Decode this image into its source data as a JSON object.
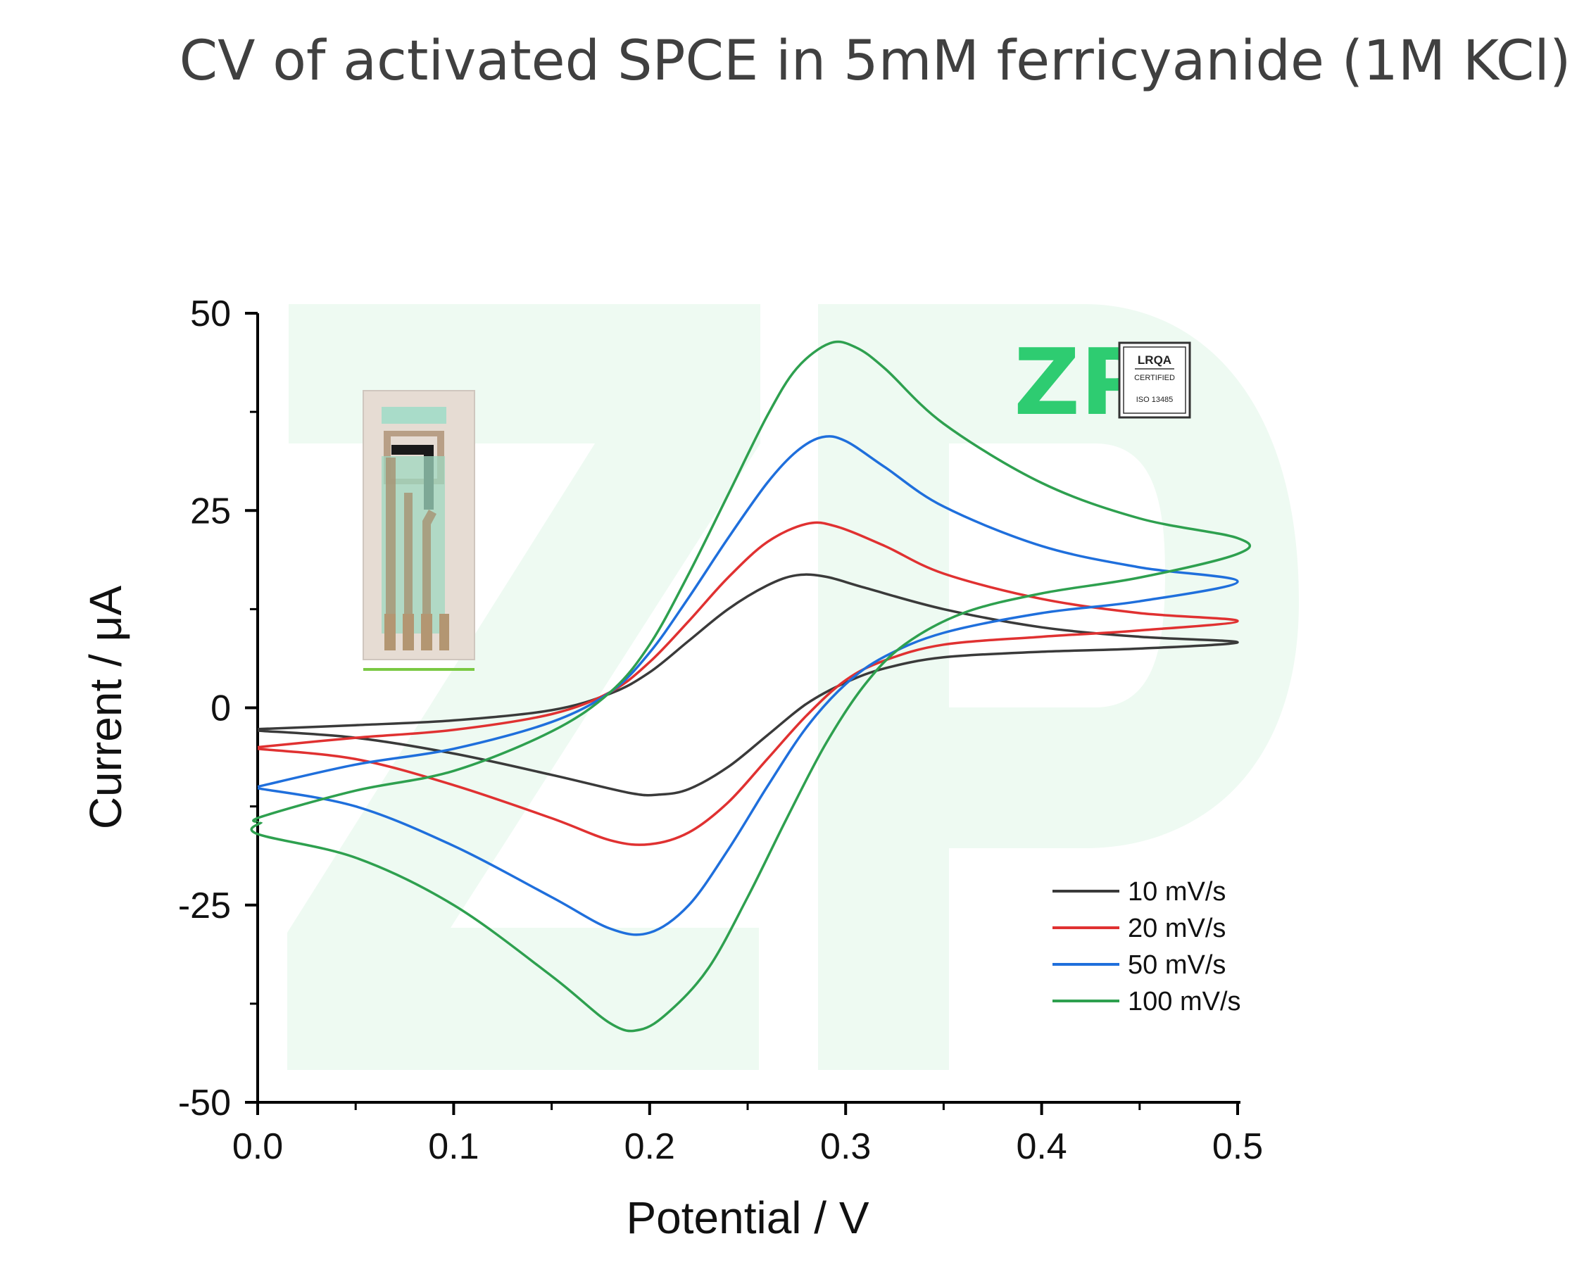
{
  "chart_data": {
    "type": "line",
    "title": "CV of activated SPCE in 5mM ferricyanide (1M KCl)",
    "xlabel": "Potential / V",
    "ylabel": "Current / μA",
    "xlim": [
      0.0,
      0.5
    ],
    "ylim": [
      -50,
      50
    ],
    "x_ticks": [
      "0.0",
      "0.1",
      "0.2",
      "0.3",
      "0.4",
      "0.5"
    ],
    "y_ticks": [
      "50",
      "25",
      "0",
      "-25",
      "-50"
    ],
    "grid": false,
    "legend_position": "bottom-right",
    "series": [
      {
        "name": "10 mV/s",
        "color": "#3a3a3a",
        "forward": [
          [
            0.0,
            -2.7
          ],
          [
            0.05,
            -2.2
          ],
          [
            0.1,
            -1.6
          ],
          [
            0.15,
            -0.3
          ],
          [
            0.18,
            1.8
          ],
          [
            0.2,
            4.5
          ],
          [
            0.22,
            8.5
          ],
          [
            0.24,
            12.5
          ],
          [
            0.26,
            15.5
          ],
          [
            0.275,
            16.8
          ],
          [
            0.29,
            16.6
          ],
          [
            0.31,
            15.2
          ],
          [
            0.35,
            12.5
          ],
          [
            0.4,
            10.2
          ],
          [
            0.45,
            9.0
          ],
          [
            0.5,
            8.3
          ]
        ],
        "reverse": [
          [
            0.5,
            8.1
          ],
          [
            0.45,
            7.5
          ],
          [
            0.4,
            7.1
          ],
          [
            0.35,
            6.4
          ],
          [
            0.32,
            5.0
          ],
          [
            0.3,
            3.2
          ],
          [
            0.28,
            0.5
          ],
          [
            0.26,
            -3.5
          ],
          [
            0.24,
            -7.5
          ],
          [
            0.22,
            -10.3
          ],
          [
            0.205,
            -11.0
          ],
          [
            0.19,
            -10.8
          ],
          [
            0.15,
            -8.5
          ],
          [
            0.1,
            -5.8
          ],
          [
            0.05,
            -3.8
          ],
          [
            0.0,
            -2.9
          ]
        ]
      },
      {
        "name": "20 mV/s",
        "color": "#e03131",
        "forward": [
          [
            0.0,
            -5.0
          ],
          [
            0.05,
            -3.8
          ],
          [
            0.1,
            -2.8
          ],
          [
            0.15,
            -0.8
          ],
          [
            0.18,
            2.0
          ],
          [
            0.2,
            5.8
          ],
          [
            0.22,
            11.0
          ],
          [
            0.24,
            16.5
          ],
          [
            0.26,
            21.0
          ],
          [
            0.28,
            23.3
          ],
          [
            0.295,
            23.0
          ],
          [
            0.32,
            20.5
          ],
          [
            0.35,
            17.0
          ],
          [
            0.4,
            13.8
          ],
          [
            0.45,
            12.0
          ],
          [
            0.5,
            11.0
          ]
        ],
        "reverse": [
          [
            0.5,
            10.5
          ],
          [
            0.45,
            9.8
          ],
          [
            0.4,
            9.0
          ],
          [
            0.35,
            8.0
          ],
          [
            0.32,
            6.0
          ],
          [
            0.3,
            3.5
          ],
          [
            0.28,
            -1.0
          ],
          [
            0.26,
            -6.5
          ],
          [
            0.24,
            -12.0
          ],
          [
            0.22,
            -15.8
          ],
          [
            0.2,
            -17.3
          ],
          [
            0.18,
            -16.8
          ],
          [
            0.15,
            -14.0
          ],
          [
            0.1,
            -9.8
          ],
          [
            0.05,
            -6.5
          ],
          [
            0.0,
            -5.2
          ]
        ]
      },
      {
        "name": "50 mV/s",
        "color": "#1f6fdc",
        "forward": [
          [
            0.0,
            -10.0
          ],
          [
            0.05,
            -7.2
          ],
          [
            0.1,
            -5.2
          ],
          [
            0.15,
            -1.8
          ],
          [
            0.18,
            2.0
          ],
          [
            0.2,
            7.0
          ],
          [
            0.22,
            14.0
          ],
          [
            0.24,
            21.5
          ],
          [
            0.26,
            28.5
          ],
          [
            0.275,
            32.5
          ],
          [
            0.288,
            34.3
          ],
          [
            0.3,
            33.8
          ],
          [
            0.32,
            30.5
          ],
          [
            0.35,
            25.5
          ],
          [
            0.4,
            20.5
          ],
          [
            0.45,
            17.8
          ],
          [
            0.5,
            16.0
          ]
        ],
        "reverse": [
          [
            0.5,
            15.5
          ],
          [
            0.45,
            13.5
          ],
          [
            0.4,
            12.0
          ],
          [
            0.35,
            9.5
          ],
          [
            0.32,
            6.5
          ],
          [
            0.3,
            3.0
          ],
          [
            0.28,
            -2.5
          ],
          [
            0.26,
            -10.0
          ],
          [
            0.24,
            -18.0
          ],
          [
            0.22,
            -25.0
          ],
          [
            0.2,
            -28.5
          ],
          [
            0.18,
            -28.0
          ],
          [
            0.15,
            -24.0
          ],
          [
            0.1,
            -17.5
          ],
          [
            0.05,
            -12.5
          ],
          [
            0.0,
            -10.2
          ]
        ]
      },
      {
        "name": "100 mV/s",
        "color": "#2ea04f",
        "forward": [
          [
            0.0,
            -14.5
          ],
          [
            0.002,
            -13.8
          ],
          [
            0.05,
            -10.5
          ],
          [
            0.1,
            -8.0
          ],
          [
            0.15,
            -3.0
          ],
          [
            0.18,
            2.0
          ],
          [
            0.2,
            8.0
          ],
          [
            0.22,
            17.0
          ],
          [
            0.24,
            27.0
          ],
          [
            0.26,
            37.0
          ],
          [
            0.275,
            43.0
          ],
          [
            0.292,
            46.2
          ],
          [
            0.305,
            45.7
          ],
          [
            0.32,
            43.0
          ],
          [
            0.35,
            36.0
          ],
          [
            0.4,
            28.5
          ],
          [
            0.45,
            24.0
          ],
          [
            0.5,
            21.5
          ],
          [
            0.5,
            19.5
          ]
        ],
        "reverse": [
          [
            0.5,
            19.5
          ],
          [
            0.45,
            16.5
          ],
          [
            0.4,
            14.5
          ],
          [
            0.36,
            12.0
          ],
          [
            0.33,
            8.0
          ],
          [
            0.31,
            3.0
          ],
          [
            0.29,
            -4.5
          ],
          [
            0.27,
            -14.0
          ],
          [
            0.25,
            -24.0
          ],
          [
            0.23,
            -33.0
          ],
          [
            0.21,
            -38.5
          ],
          [
            0.195,
            -40.8
          ],
          [
            0.18,
            -40.0
          ],
          [
            0.15,
            -34.0
          ],
          [
            0.1,
            -25.0
          ],
          [
            0.05,
            -19.0
          ],
          [
            0.0,
            -16.0
          ],
          [
            0.002,
            -14.5
          ]
        ]
      }
    ]
  },
  "logo": {
    "brand_text": "ZP",
    "badge_lines": [
      "LRQA",
      "CERTIFIED",
      "ISO 13485"
    ],
    "brand_color": "#2ecc71",
    "watermark_color": "#eefaf2"
  }
}
